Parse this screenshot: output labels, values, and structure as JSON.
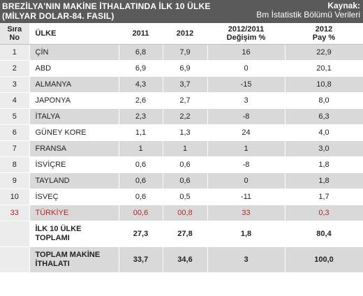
{
  "header": {
    "title_line1": "BREZİLYA'NIN MAKİNE İTHALATINDA İLK 10 ÜLKE",
    "title_line2": "(MİLYAR DOLAR-84. FASIL)",
    "source_label": "Kaynak:",
    "source_text": "Bm İstatistik Bölümü Verileri"
  },
  "columns": {
    "rank_line1": "Sıra",
    "rank_line2": "No",
    "country": "ÜLKE",
    "y2011": "2011",
    "y2012": "2012",
    "change_line1": "2012/2011",
    "change_line2": "Değişim  %",
    "share_line1": "2012",
    "share_line2": "Pay %"
  },
  "rows": [
    {
      "rank": "1",
      "country": "ÇİN",
      "v2011": "6,8",
      "v2012": "7,9",
      "change": "16",
      "share": "22,9"
    },
    {
      "rank": "2",
      "country": "ABD",
      "v2011": "6,9",
      "v2012": "6,9",
      "change": "0",
      "share": "20,1"
    },
    {
      "rank": "3",
      "country": "ALMANYA",
      "v2011": "4,3",
      "v2012": "3,7",
      "change": "-15",
      "share": "10,8"
    },
    {
      "rank": "4",
      "country": "JAPONYA",
      "v2011": "2,6",
      "v2012": "2,7",
      "change": "3",
      "share": "8,0"
    },
    {
      "rank": "5",
      "country": "İTALYA",
      "v2011": "2,3",
      "v2012": "2,2",
      "change": "-8",
      "share": "6,3"
    },
    {
      "rank": "6",
      "country": "GÜNEY KORE",
      "v2011": "1,1",
      "v2012": "1,3",
      "change": "24",
      "share": "4,0"
    },
    {
      "rank": "7",
      "country": "FRANSA",
      "v2011": "1",
      "v2012": "1",
      "change": "1",
      "share": "3,0"
    },
    {
      "rank": "8",
      "country": "İSVİÇRE",
      "v2011": "0,6",
      "v2012": "0,6",
      "change": "-8",
      "share": "1,8"
    },
    {
      "rank": "9",
      "country": "TAYLAND",
      "v2011": "0,6",
      "v2012": "0,6",
      "change": "0",
      "share": "1,8"
    },
    {
      "rank": "10",
      "country": "İSVEÇ",
      "v2011": "0,6",
      "v2012": "0,5",
      "change": "-11",
      "share": "1,7"
    },
    {
      "rank": "33",
      "country": "TÜRKİYE",
      "v2011": "00,6",
      "v2012": "00,8",
      "change": "33",
      "share": "0,3"
    }
  ],
  "totals": [
    {
      "label_line1": "İLK 10 ÜLKE",
      "label_line2": "TOPLAMI",
      "v2011": "27,3",
      "v2012": "27,8",
      "change": "1,8",
      "share": "80,4"
    },
    {
      "label_line1": "TOPLAM MAKİNE",
      "label_line2": "İTHALATI",
      "v2011": "33,7",
      "v2012": "34,6",
      "change": "3",
      "share": "100,0"
    }
  ],
  "colors": {
    "header_bg": "#5a5a5a",
    "stripe": "#d9d9d9",
    "highlight_text": "#b02a2a"
  }
}
